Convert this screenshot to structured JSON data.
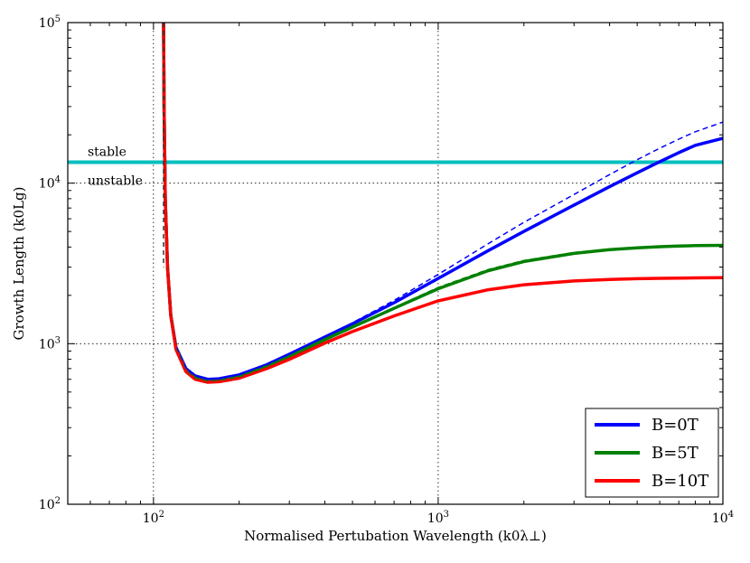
{
  "chart_data": {
    "type": "line",
    "xscale": "log",
    "yscale": "log",
    "xlim": [
      50,
      10000
    ],
    "ylim": [
      100,
      100000
    ],
    "grid": true,
    "legend_position": "bottom-right",
    "xlabel": "Normalised Pertubation Wavelength (k0λ⊥)",
    "ylabel": "Growth Length (k0Lg)",
    "x_ticks": [
      {
        "value": 100,
        "base": "10",
        "exp": "2"
      },
      {
        "value": 1000,
        "base": "10",
        "exp": "3"
      },
      {
        "value": 10000,
        "base": "10",
        "exp": "4"
      }
    ],
    "y_ticks": [
      {
        "value": 100,
        "base": "10",
        "exp": "2"
      },
      {
        "value": 1000,
        "base": "10",
        "exp": "3"
      },
      {
        "value": 10000,
        "base": "10",
        "exp": "4"
      },
      {
        "value": 100000,
        "base": "10",
        "exp": "5"
      }
    ],
    "series": [
      {
        "name": "B=0T",
        "color": "#0000ff",
        "style": "solid",
        "x": [
          108.5,
          109,
          110,
          112,
          115,
          120,
          130,
          140,
          155,
          170,
          200,
          250,
          300,
          400,
          500,
          700,
          1000,
          1500,
          2000,
          3000,
          4000,
          5000,
          6000,
          7000,
          8000,
          10000
        ],
        "y": [
          100000,
          30000,
          8000,
          3000,
          1500,
          950,
          700,
          630,
          600,
          605,
          640,
          740,
          860,
          1100,
          1330,
          1800,
          2550,
          3800,
          5000,
          7300,
          9500,
          11600,
          13600,
          15500,
          17200,
          19000
        ]
      },
      {
        "name": "B=5T",
        "color": "#008000",
        "style": "solid",
        "x": [
          108.5,
          109,
          110,
          112,
          115,
          120,
          130,
          140,
          155,
          170,
          200,
          250,
          300,
          400,
          500,
          700,
          1000,
          1500,
          2000,
          3000,
          4000,
          5000,
          6000,
          7000,
          8000,
          10000
        ],
        "y": [
          100000,
          30000,
          8000,
          3000,
          1500,
          930,
          680,
          610,
          580,
          585,
          620,
          720,
          830,
          1060,
          1270,
          1660,
          2200,
          2850,
          3250,
          3650,
          3850,
          3950,
          4020,
          4060,
          4080,
          4100
        ]
      },
      {
        "name": "B=10T",
        "color": "#ff0000",
        "style": "solid",
        "x": [
          108.5,
          109,
          110,
          112,
          115,
          120,
          130,
          140,
          155,
          170,
          200,
          250,
          300,
          400,
          500,
          700,
          1000,
          1500,
          2000,
          3000,
          4000,
          5000,
          6000,
          7000,
          8000,
          10000
        ],
        "y": [
          100000,
          30000,
          8000,
          3000,
          1500,
          920,
          670,
          600,
          575,
          580,
          610,
          700,
          800,
          1010,
          1190,
          1490,
          1850,
          2170,
          2330,
          2460,
          2510,
          2540,
          2555,
          2565,
          2570,
          2580
        ]
      },
      {
        "name": "",
        "color": "#0000ff",
        "style": "dashed",
        "x": [
          108.5,
          109,
          110,
          112,
          115,
          120,
          130,
          140,
          155,
          170,
          200,
          250,
          300,
          400,
          500,
          700,
          1000,
          1500,
          2000,
          3000,
          4000,
          5000,
          6000,
          7000,
          8000,
          10000
        ],
        "y": [
          100000,
          30000,
          8000,
          3000,
          1500,
          950,
          700,
          630,
          600,
          605,
          640,
          740,
          860,
          1110,
          1350,
          1860,
          2700,
          4200,
          5700,
          8500,
          11300,
          14000,
          16500,
          18800,
          20900,
          24000
        ]
      },
      {
        "name": "",
        "color": "#008000",
        "style": "dashed",
        "x": [
          108.5,
          109,
          110,
          112,
          115,
          120,
          130,
          140,
          155,
          170,
          200,
          250,
          300,
          400,
          500,
          700,
          1000,
          1500,
          2000,
          3000,
          4000,
          5000,
          6000,
          7000,
          8000,
          10000
        ],
        "y": [
          100000,
          30000,
          8000,
          3000,
          1500,
          930,
          680,
          610,
          580,
          585,
          620,
          720,
          830,
          1060,
          1280,
          1680,
          2240,
          2900,
          3300,
          3700,
          3880,
          3970,
          4030,
          4070,
          4090,
          4110
        ]
      },
      {
        "name": "",
        "color": "#ff0000",
        "style": "dashed",
        "x": [
          108.5,
          109,
          110,
          112,
          115,
          120,
          130,
          140,
          155,
          170,
          200,
          250,
          300,
          400,
          500,
          700,
          1000,
          1500,
          2000,
          3000,
          4000,
          5000,
          6000,
          7000,
          8000,
          10000
        ],
        "y": [
          100000,
          30000,
          8000,
          3000,
          1500,
          920,
          670,
          600,
          575,
          580,
          610,
          700,
          800,
          1010,
          1190,
          1490,
          1850,
          2170,
          2330,
          2460,
          2510,
          2540,
          2555,
          2565,
          2570,
          2580
        ]
      }
    ],
    "threshold": {
      "y": 13500,
      "color": "#00bfbf",
      "label_above": "stable",
      "label_below": "unstable"
    },
    "vertical_line": {
      "x": 108.5
    }
  }
}
